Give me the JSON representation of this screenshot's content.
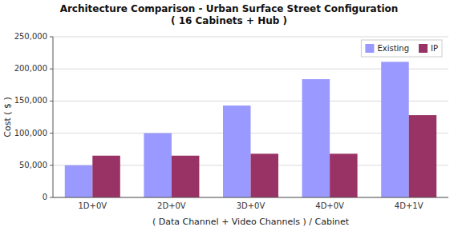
{
  "chart_data": {
    "type": "bar",
    "title": "Architecture Comparison - Urban Surface Street Configuration\n( 16 Cabinets + Hub )",
    "xlabel": "( Data Channel + Video Channels ) / Cabinet",
    "ylabel": "Cost ( $ )",
    "categories": [
      "1D+0V",
      "2D+0V",
      "3D+0V",
      "4D+0V",
      "4D+1V"
    ],
    "series": [
      {
        "name": "Existing",
        "color": "#9999FF",
        "values": [
          50000,
          100000,
          143000,
          184000,
          211000
        ]
      },
      {
        "name": "IP",
        "color": "#993366",
        "values": [
          65000,
          65000,
          68000,
          68000,
          128000
        ]
      }
    ],
    "ylim": [
      0,
      250000
    ],
    "yticks": [
      0,
      {
        "value": 50000,
        "label": "50,000"
      },
      {
        "value": 100000,
        "label": "100,000"
      },
      {
        "value": 150000,
        "label": "150,000"
      },
      {
        "value": 200000,
        "label": "200,000"
      },
      {
        "value": 250000,
        "label": "250,000"
      }
    ],
    "grid": true,
    "legend": "upper right"
  }
}
